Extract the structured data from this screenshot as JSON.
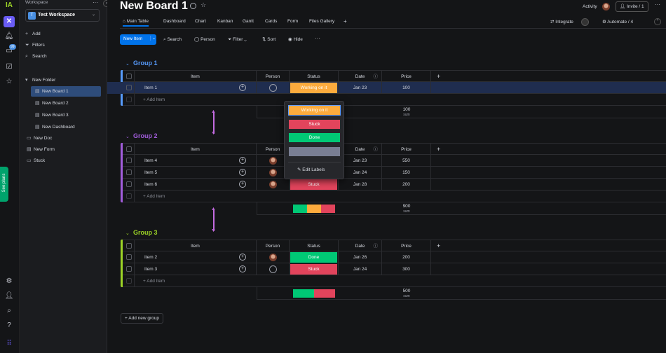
{
  "rail": {
    "notif_count": "99",
    "see_plans": "See plans"
  },
  "sidebar": {
    "header": "Workspace",
    "workspace_badge": "T",
    "workspace_name": "Test Workspace",
    "actions": [
      {
        "label": "Add",
        "icon": "plus-icon"
      },
      {
        "label": "Filters",
        "icon": "filter-icon"
      },
      {
        "label": "Search",
        "icon": "search-icon"
      }
    ],
    "folder": "New Folder",
    "folder_items": [
      {
        "label": "New Board 1",
        "active": true
      },
      {
        "label": "New Board 2",
        "active": false
      },
      {
        "label": "New Board 3",
        "active": false
      },
      {
        "label": "New Dashboard",
        "active": false
      }
    ],
    "root_items": [
      {
        "label": "New Doc"
      },
      {
        "label": "New Form"
      },
      {
        "label": "Stuck"
      }
    ]
  },
  "header": {
    "title": "New Board 1",
    "activity": "Activity",
    "invite": "Invite / 1",
    "integrate": "Integrate",
    "automate": "Automate / 4"
  },
  "tabs": [
    "Main Table",
    "Dashboard",
    "Chart",
    "Kanban",
    "Gantt",
    "Cards",
    "Form",
    "Files Gallery"
  ],
  "toolbar": {
    "new_item": "New Item",
    "search": "Search",
    "person": "Person",
    "filter": "Filter",
    "sort": "Sort",
    "hide": "Hide"
  },
  "columns": {
    "item": "Item",
    "person": "Person",
    "status": "Status",
    "date": "Date",
    "price": "Price"
  },
  "colors": {
    "working": "#fdab3d",
    "stuck": "#e2445c",
    "done": "#00c875",
    "grey": "#797e93",
    "accent": "#0073ea"
  },
  "groups": [
    {
      "title": "Group 1",
      "color": "#579bfc",
      "rows": [
        {
          "name": "Item 1",
          "status": "Working on it",
          "date": "Jan 23",
          "price": "100",
          "avatar": false
        }
      ],
      "sum": "100",
      "sum_label": "sum"
    },
    {
      "title": "Group 2",
      "color": "#a25ddc",
      "rows": [
        {
          "name": "Item 4",
          "status": "Done",
          "date": "Jan 23",
          "price": "550",
          "avatar": true
        },
        {
          "name": "Item 5",
          "status": "Done",
          "date": "Jan 24",
          "price": "150",
          "avatar": true
        },
        {
          "name": "Item 6",
          "status": "Stuck",
          "date": "Jan 28",
          "price": "200",
          "avatar": true
        }
      ],
      "sum": "900",
      "sum_label": "sum"
    },
    {
      "title": "Group 3",
      "color": "#9cd326",
      "rows": [
        {
          "name": "Item 2",
          "status": "Done",
          "date": "Jan 26",
          "price": "200",
          "avatar": true
        },
        {
          "name": "Item 3",
          "status": "Stuck",
          "date": "Jan 24",
          "price": "300",
          "avatar": false
        }
      ],
      "sum": "500",
      "sum_label": "sum"
    }
  ],
  "add_item": "+ Add Item",
  "add_group": "Add new group",
  "dropdown": {
    "options": [
      {
        "label": "Working on it",
        "color": "#fdab3d"
      },
      {
        "label": "Stuck",
        "color": "#e2445c"
      },
      {
        "label": "Done",
        "color": "#00c875"
      },
      {
        "label": "",
        "color": "#797e93"
      }
    ],
    "edit_labels": "Edit Labels"
  }
}
